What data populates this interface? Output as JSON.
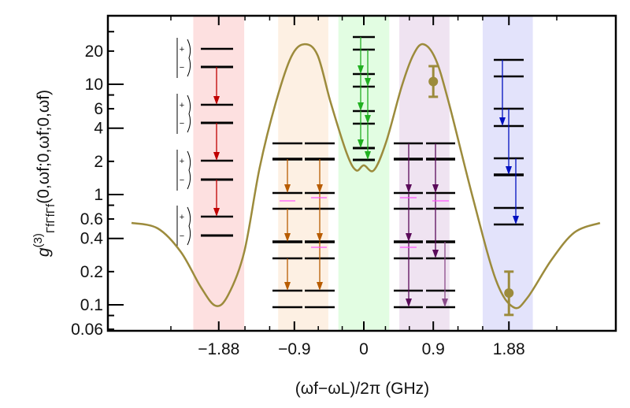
{
  "chart_data": {
    "type": "line",
    "title": "",
    "xlabel": "(ωf−ωL)/2π (GHz)",
    "ylabel": {
      "base": "g",
      "sup": "(3)",
      "sub": "ΓfΓfΓf",
      "args": "(0,ωf;0,ωf;0,ωf)"
    },
    "x_scale": "linear",
    "y_scale": "log",
    "xlim": [
      -3.3,
      3.3
    ],
    "ylim": [
      0.058,
      42
    ],
    "x_ticks": [
      -1.88,
      -0.9,
      0,
      0.9,
      1.88
    ],
    "x_tick_labels": [
      "−1.88",
      "−0.9",
      "0",
      "0.9",
      "1.88"
    ],
    "y_ticks": [
      20,
      10,
      6,
      4,
      2,
      1,
      0.6,
      0.4,
      0.2,
      0.1,
      0.06
    ],
    "y_tick_labels": [
      "20",
      "10",
      "6",
      "4",
      "2",
      "1",
      "0.6",
      "0.4",
      "0.2",
      "0.1",
      "0.06"
    ],
    "grid": false,
    "curve": {
      "color": "#9c8b3c",
      "x": [
        -3.01,
        -2.67,
        -2.37,
        -2.11,
        -1.92,
        -1.76,
        -1.55,
        -1.35,
        -1.14,
        -0.94,
        -0.77,
        -0.6,
        -0.43,
        -0.22,
        -0.1,
        0,
        0.13,
        0.29,
        0.49,
        0.64,
        0.77,
        0.93,
        1.1,
        1.41,
        1.71,
        1.94,
        2.12,
        2.43,
        2.73,
        3.06
      ],
      "y": [
        0.553,
        0.493,
        0.301,
        0.144,
        0.098,
        0.122,
        0.301,
        1.75,
        6.85,
        17.8,
        23.1,
        18.4,
        6.85,
        2.35,
        1.66,
        1.84,
        1.66,
        3.01,
        9.52,
        18.4,
        23.1,
        16.9,
        6.85,
        0.95,
        0.169,
        0.095,
        0.116,
        0.255,
        0.454,
        0.553
      ]
    },
    "measured_points": {
      "color": "#9c8b3c",
      "points": [
        {
          "x": 0.9,
          "y": 10.6,
          "err_low": 7.7,
          "err_high": 14.6
        },
        {
          "x": 1.88,
          "y": 0.128,
          "err_low": 0.081,
          "err_high": 0.2
        }
      ]
    },
    "shaded_bands": [
      {
        "from": -2.21,
        "to": -1.55,
        "color": "#fde0e0"
      },
      {
        "from": -1.11,
        "to": -0.46,
        "color": "#fdf0e3"
      },
      {
        "from": -0.33,
        "to": 0.33,
        "color": "#e2fde2"
      },
      {
        "from": 0.46,
        "to": 1.11,
        "color": "#efe3f1"
      },
      {
        "from": 1.54,
        "to": 2.19,
        "color": "#e3e3fb"
      }
    ],
    "inset_diagrams": {
      "ket_plus": "+",
      "ket_minus": "−",
      "arrow_colors": {
        "red": "#c00000",
        "orange": "#b85c00",
        "green": "#22b022",
        "purple": "#5a0a5a",
        "blue": "#0010c0",
        "magenta": "#ff55ff"
      }
    }
  }
}
